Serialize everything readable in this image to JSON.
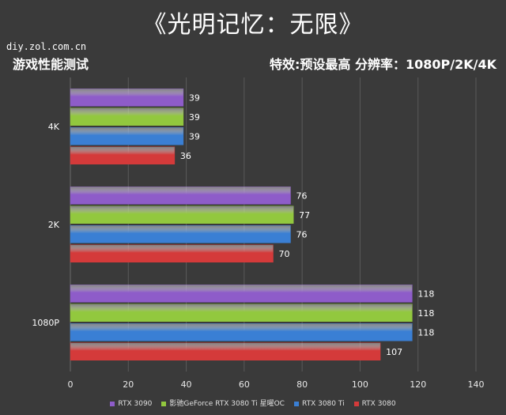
{
  "header": {
    "title": "《光明记忆：无限》",
    "site": "diy.zol.com.cn",
    "test_label": "游戏性能测试",
    "settings_label": "特效:预设最高  分辨率：1080P/2K/4K"
  },
  "chart_data": {
    "type": "bar",
    "orientation": "horizontal",
    "title": "《光明记忆：无限》",
    "categories": [
      "4K",
      "2K",
      "1080P"
    ],
    "series": [
      {
        "name": "RTX 3090",
        "color": "#8e5cc9",
        "values": [
          39,
          76,
          118
        ]
      },
      {
        "name": "影驰GeForce RTX 3080 Ti 星曜OC",
        "color": "#92c83e",
        "values": [
          39,
          77,
          118
        ]
      },
      {
        "name": "RTX 3080 Ti",
        "color": "#3a7fd4",
        "values": [
          39,
          76,
          118
        ]
      },
      {
        "name": "RTX 3080",
        "color": "#d43a3a",
        "values": [
          36,
          70,
          107
        ]
      }
    ],
    "xlim": [
      0,
      140
    ],
    "xticks": [
      0,
      20,
      40,
      60,
      80,
      100,
      120,
      140
    ],
    "grid": true,
    "legend_position": "bottom"
  }
}
